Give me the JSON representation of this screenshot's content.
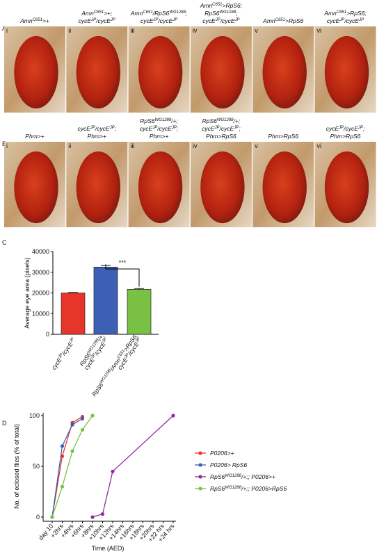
{
  "panels": {
    "A": {
      "letter": "A",
      "images": [
        {
          "numeral": "i",
          "label": [
            [
              "Amn",
              "C651",
              ">+"
            ]
          ]
        },
        {
          "numeral": "ii",
          "label": [
            [
              "Amn",
              "C651",
              ">+;"
            ],
            [
              "cycE",
              "JP",
              "/cycE",
              "JP"
            ]
          ]
        },
        {
          "numeral": "iii",
          "label": [
            [
              "Amn",
              "C651",
              "/RpS6",
              "WG1288",
              ";"
            ],
            [
              "cycE",
              "JP",
              "/cycE",
              "JP"
            ]
          ]
        },
        {
          "numeral": "iv",
          "label": [
            [
              "Amn",
              "C651",
              ">RpS6;"
            ],
            [
              "RpS6",
              "WG1288",
              ";"
            ],
            [
              "cycE",
              "JP",
              "/cycE",
              "JP"
            ]
          ]
        },
        {
          "numeral": "v",
          "label": [
            [
              "Amn",
              "C651",
              ">RpS6"
            ]
          ]
        },
        {
          "numeral": "vi",
          "label": [
            [
              "Amn",
              "C651",
              ">RpS6;"
            ],
            [
              "cycE",
              "JP",
              "/cycE",
              "JP"
            ]
          ]
        }
      ]
    },
    "B": {
      "letter": "B",
      "images": [
        {
          "numeral": "i",
          "label": [
            [
              "Phm>+"
            ]
          ]
        },
        {
          "numeral": "ii",
          "label": [
            [
              "cycE",
              "JP",
              "/cycE",
              "JP",
              ";"
            ],
            [
              "Phm>+"
            ]
          ]
        },
        {
          "numeral": "iii",
          "label": [
            [
              "RpS6",
              "WG1288",
              "/+;"
            ],
            [
              "cycE",
              "JP",
              "/cycE",
              "JP",
              ";"
            ],
            [
              "Phm>+"
            ]
          ]
        },
        {
          "numeral": "iv",
          "label": [
            [
              "RpS6",
              "WG1288",
              "/+;"
            ],
            [
              "cycE",
              "JP",
              "/cycE",
              "JP",
              ";"
            ],
            [
              "Phm>RpS6"
            ]
          ]
        },
        {
          "numeral": "v",
          "label": [
            [
              "Phm>RpS6"
            ]
          ]
        },
        {
          "numeral": "vi",
          "label": [
            [
              "cycE",
              "JP",
              "/cycE",
              "JP",
              ";"
            ],
            [
              "Phm>RpS6"
            ]
          ]
        }
      ]
    }
  },
  "chart_data": [
    {
      "type": "bar",
      "letter": "C",
      "ylabel": "Average eye area (pixels)",
      "categories": [
        [
          [
            "cycE",
            "JP",
            "/cycE",
            "JP"
          ]
        ],
        [
          [
            "RpS6",
            "WG1288",
            "/+;"
          ],
          [
            "cycE",
            "JP",
            "/cycE",
            "JP"
          ]
        ],
        [
          [
            "RpS6",
            "WG1288",
            "/Amn",
            "C651",
            ">RpS6;"
          ],
          [
            "cycE",
            "JP",
            "/cycE",
            "JP"
          ]
        ]
      ],
      "values": [
        20000,
        32500,
        21700
      ],
      "errors": [
        200,
        900,
        400
      ],
      "colors": [
        "#e8352b",
        "#3d5fb4",
        "#7ac143"
      ],
      "ylim": [
        0,
        40000
      ],
      "yticks": [
        0,
        10000,
        20000,
        30000,
        40000
      ],
      "annotation": "***"
    },
    {
      "type": "line",
      "letter": "D",
      "ylabel": "No. of eclosed flies (% of total)",
      "xlabel": "Time (AED)",
      "xlim": [
        0,
        24
      ],
      "ylim": [
        0,
        100
      ],
      "yticks": [
        0,
        50,
        100
      ],
      "xticks": [
        {
          "value": 0,
          "label": "day 10"
        },
        {
          "value": 2,
          "label": "+2hrs"
        },
        {
          "value": 4,
          "label": "+4hrs"
        },
        {
          "value": 6,
          "label": "+6hrs"
        },
        {
          "value": 8,
          "label": "+8hrs"
        },
        {
          "value": 10,
          "label": "+10hrs"
        },
        {
          "value": 12,
          "label": "+12hrs"
        },
        {
          "value": 14,
          "label": "+14hrs"
        },
        {
          "value": 16,
          "label": "+16hrs"
        },
        {
          "value": 18,
          "label": "+18hrs"
        },
        {
          "value": 20,
          "label": "+20hrs"
        },
        {
          "value": 22,
          "label": "+22 hrs"
        },
        {
          "value": 24,
          "label": "+24 hrs"
        }
      ],
      "series": [
        {
          "name": [
            [
              "P0206>+"
            ]
          ],
          "color": "#e8352b",
          "x": [
            0,
            2,
            4,
            6
          ],
          "values": [
            0,
            60,
            93,
            99
          ]
        },
        {
          "name": [
            [
              "P0206> RpS6"
            ]
          ],
          "color": "#3d5fb4",
          "x": [
            0,
            2,
            4,
            6
          ],
          "values": [
            0,
            70,
            91,
            97
          ]
        },
        {
          "name": [
            [
              "RpS6",
              "WG1288",
              "/+;; P0206>+"
            ]
          ],
          "color": "#8e2e9c",
          "x": [
            8,
            10,
            12,
            24
          ],
          "values": [
            0,
            3,
            45,
            100
          ]
        },
        {
          "name": [
            [
              "RpS6",
              "WG1288",
              "/+;; P0206>RpS6"
            ]
          ],
          "color": "#7ac143",
          "x": [
            0,
            2,
            4,
            6,
            8
          ],
          "values": [
            0,
            30,
            65,
            86,
            100
          ]
        }
      ]
    }
  ]
}
